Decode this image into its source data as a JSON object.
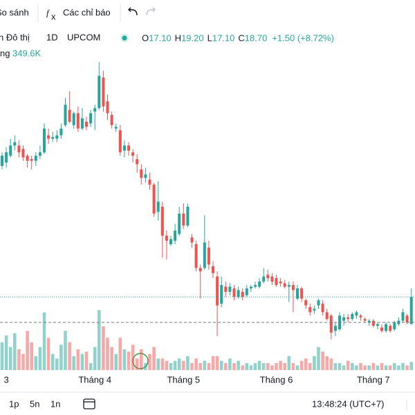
{
  "toolbar": {
    "compare": "So sánh",
    "indicators": "Các chỉ báo"
  },
  "legend": {
    "symbol": "n Đô thị",
    "interval": "1D",
    "exchange": "UPCOM",
    "ohlc": [
      {
        "key": "O",
        "value": "17.10"
      },
      {
        "key": "H",
        "value": "19.20"
      },
      {
        "key": "L",
        "value": "17.10"
      },
      {
        "key": "C",
        "value": "18.70"
      }
    ],
    "change": "+1.50 (+8.72%)",
    "volume_name": "ng",
    "volume_value": "349.6K"
  },
  "chart_data": {
    "type": "candlestick",
    "categories": [
      null,
      "3",
      null,
      null,
      null,
      null,
      null,
      null,
      null,
      null,
      null,
      null,
      null,
      null,
      null,
      null,
      null,
      null,
      null,
      null,
      null,
      null,
      "Tháng 4",
      null,
      null,
      null,
      null,
      null,
      null,
      null,
      null,
      null,
      null,
      null,
      null,
      null,
      null,
      null,
      null,
      null,
      null,
      null,
      null,
      "Tháng 5",
      null,
      null,
      null,
      null,
      null,
      null,
      null,
      null,
      null,
      null,
      null,
      null,
      null,
      null,
      null,
      null,
      null,
      null,
      null,
      null,
      null,
      "Tháng 6",
      null,
      null,
      null,
      null,
      null,
      null,
      null,
      null,
      null,
      null,
      null,
      null,
      null,
      null,
      null,
      null,
      null,
      null,
      null,
      null,
      null,
      null,
      "Tháng 7",
      null,
      null,
      null,
      null,
      null,
      null,
      null,
      null,
      null
    ],
    "open": [
      26.4,
      26.6,
      27.0,
      27.6,
      27.6,
      27.4,
      27.0,
      26.8,
      26.7,
      27.0,
      27.2,
      28.2,
      28.0,
      28.0,
      28.2,
      28.8,
      29.7,
      28.8,
      29.5,
      28.6,
      29.0,
      28.9,
      29.6,
      29.8,
      31.6,
      30.2,
      29.4,
      28.6,
      28.5,
      27.3,
      27.6,
      27.2,
      26.8,
      26.2,
      25.7,
      25.6,
      25.3,
      23.7,
      24.0,
      22.3,
      21.8,
      22.0,
      22.4,
      23.6,
      22.9,
      22.2,
      21.8,
      20.4,
      20.4,
      21.6,
      20.5,
      19.9,
      18.3,
      19.3,
      19.0,
      19.2,
      18.7,
      19.0,
      18.8,
      19.2,
      19.3,
      19.3,
      19.6,
      20.0,
      19.9,
      19.8,
      19.6,
      19.5,
      19.3,
      19.4,
      18.6,
      19.2,
      18.5,
      18.1,
      17.9,
      18.2,
      18.3,
      17.8,
      17.6,
      16.7,
      16.8,
      17.3,
      17.5,
      17.4,
      17.6,
      17.6,
      17.4,
      17.2,
      17.3,
      17.0,
      16.9,
      16.7,
      17.0,
      16.8,
      17.1,
      17.3,
      17.6,
      17.1
    ],
    "high": [
      27.2,
      27.5,
      28.0,
      28.2,
      27.9,
      27.6,
      27.1,
      27.0,
      27.2,
      27.6,
      28.9,
      28.6,
      28.4,
      28.5,
      28.9,
      30.4,
      30.8,
      29.6,
      29.9,
      29.8,
      29.3,
      29.7,
      30.0,
      32.5,
      32.0,
      30.6,
      29.6,
      28.9,
      28.8,
      27.9,
      27.8,
      27.4,
      27.1,
      26.5,
      26.3,
      26.0,
      25.4,
      25.5,
      24.3,
      22.6,
      22.3,
      23.0,
      24.0,
      24.2,
      24.2,
      22.4,
      22.0,
      20.6,
      23.5,
      22.0,
      20.8,
      20.2,
      19.9,
      19.6,
      19.5,
      19.4,
      19.3,
      19.2,
      19.4,
      19.4,
      19.6,
      19.8,
      20.4,
      20.3,
      20.1,
      20.0,
      19.8,
      19.7,
      19.6,
      19.6,
      19.4,
      19.3,
      18.6,
      18.3,
      18.2,
      18.6,
      18.5,
      18.0,
      17.7,
      17.2,
      17.8,
      17.7,
      17.7,
      17.8,
      17.9,
      17.7,
      17.5,
      17.4,
      17.4,
      17.2,
      17.1,
      17.2,
      17.1,
      17.3,
      17.5,
      18.0,
      17.7,
      19.2
    ],
    "low": [
      26.2,
      26.3,
      26.9,
      27.3,
      26.9,
      26.7,
      26.3,
      26.2,
      26.4,
      26.8,
      27.1,
      27.7,
      27.8,
      27.8,
      28.0,
      28.7,
      28.9,
      28.6,
      28.4,
      28.5,
      28.5,
      28.7,
      28.5,
      29.7,
      29.6,
      29.1,
      28.6,
      28.4,
      27.0,
      26.9,
      27.0,
      26.6,
      26.0,
      25.3,
      25.4,
      25.0,
      23.4,
      23.2,
      21.0,
      20.9,
      21.7,
      21.8,
      22.3,
      22.7,
      22.8,
      21.6,
      20.2,
      18.6,
      20.3,
      20.3,
      19.8,
      16.4,
      18.1,
      18.7,
      18.8,
      18.5,
      18.6,
      18.5,
      18.7,
      19.0,
      19.2,
      19.2,
      19.5,
      19.6,
      19.4,
      19.3,
      19.3,
      19.2,
      18.4,
      17.8,
      18.5,
      18.4,
      18.0,
      17.6,
      17.7,
      18.0,
      17.6,
      17.3,
      16.2,
      16.4,
      16.7,
      17.0,
      17.2,
      17.3,
      17.4,
      17.3,
      17.2,
      17.0,
      16.9,
      16.8,
      16.6,
      16.6,
      16.6,
      16.7,
      17.0,
      17.2,
      17.1,
      17.1
    ],
    "close": [
      27.0,
      27.2,
      27.6,
      27.8,
      27.2,
      26.9,
      26.7,
      26.7,
      27.0,
      27.2,
      28.6,
      28.0,
      28.1,
      28.2,
      28.6,
      30.0,
      29.0,
      29.5,
      28.6,
      29.2,
      28.7,
      29.5,
      29.8,
      31.7,
      29.9,
      29.5,
      28.8,
      28.7,
      27.2,
      27.6,
      27.3,
      27.0,
      26.5,
      25.7,
      25.9,
      25.3,
      23.6,
      24.3,
      22.3,
      22.0,
      22.1,
      22.6,
      23.6,
      22.9,
      24.0,
      21.9,
      20.4,
      20.2,
      21.9,
      20.6,
      20.1,
      18.2,
      19.4,
      19.0,
      19.3,
      18.7,
      19.1,
      18.7,
      19.2,
      19.3,
      19.4,
      19.6,
      19.9,
      19.8,
      19.6,
      19.4,
      19.5,
      19.3,
      19.4,
      19.1,
      19.2,
      18.6,
      18.2,
      17.8,
      18.0,
      18.5,
      17.8,
      17.4,
      16.6,
      17.0,
      17.6,
      17.5,
      17.4,
      17.7,
      17.8,
      17.5,
      17.3,
      17.3,
      17.0,
      17.1,
      16.7,
      17.1,
      16.7,
      17.2,
      17.3,
      17.8,
      17.2,
      18.7
    ],
    "volume": [
      1200000,
      1500000,
      1000000,
      1600000,
      900000,
      700000,
      1700000,
      1200000,
      600000,
      1000000,
      2500000,
      1400000,
      700000,
      500000,
      1100000,
      1700000,
      1200000,
      600000,
      900000,
      700000,
      800000,
      300000,
      1000000,
      2600000,
      1900000,
      1400000,
      1000000,
      700000,
      1400000,
      900000,
      800000,
      1100000,
      500000,
      900000,
      300000,
      700000,
      1000000,
      500000,
      500000,
      400000,
      300000,
      400000,
      500000,
      400000,
      600000,
      300000,
      500000,
      300000,
      400000,
      300000,
      600000,
      600000,
      400000,
      300000,
      500000,
      300000,
      400000,
      200000,
      300000,
      200000,
      300000,
      400000,
      300000,
      300000,
      200000,
      300000,
      400000,
      300000,
      600000,
      300000,
      200000,
      400000,
      500000,
      300000,
      600000,
      1000000,
      800000,
      600000,
      500000,
      300000,
      300000,
      200000,
      400000,
      300000,
      200000,
      300000,
      200000,
      200000,
      300000,
      200000,
      300000,
      200000,
      200000,
      300000,
      200000,
      300000,
      200000,
      349600
    ],
    "up_color": "#26a69a",
    "down_color": "#ef5350",
    "ylim": [
      14.4,
      32.7
    ],
    "volume_ylim": [
      0,
      3000000
    ]
  },
  "footer": {
    "ranges": [
      "1p",
      "5n",
      "1n"
    ],
    "clock": "13:48:24 (UTC+7)"
  }
}
